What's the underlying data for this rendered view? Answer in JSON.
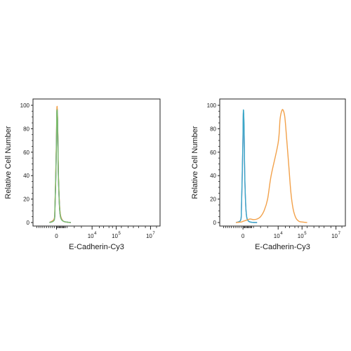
{
  "chart_data": [
    {
      "type": "line",
      "title": "",
      "xlabel": "E-Cadherin-Cy3",
      "ylabel": "Relative Cell Number",
      "x_scale": "logicle",
      "x_ticks": [
        {
          "value": 0,
          "label": "0",
          "exp": ""
        },
        {
          "value": 10000,
          "label": "10",
          "exp": "4"
        },
        {
          "value": 100000,
          "label": "10",
          "exp": "5"
        },
        {
          "value": 10000000,
          "label": "10",
          "exp": "7"
        }
      ],
      "y_ticks": [
        "0",
        "20",
        "40",
        "60",
        "80",
        "100"
      ],
      "ylim": [
        0,
        100
      ],
      "grid": false,
      "legend": "none",
      "series": [
        {
          "color": "#e05a2a",
          "peak_x": 3,
          "peak_y": 97,
          "points": [
            [
              -900,
              0
            ],
            [
              -300,
              3
            ],
            [
              -200,
              12
            ],
            [
              -100,
              38
            ],
            [
              0,
              72
            ],
            [
              50,
              88
            ],
            [
              100,
              95
            ],
            [
              150,
              97
            ],
            [
              200,
              96
            ],
            [
              300,
              88
            ],
            [
              400,
              70
            ],
            [
              500,
              45
            ],
            [
              700,
              25
            ],
            [
              900,
              12
            ],
            [
              1200,
              5
            ],
            [
              2000,
              1
            ],
            [
              4000,
              0
            ]
          ]
        },
        {
          "color": "#f2a14a",
          "peak_x": 4,
          "peak_y": 99,
          "points": [
            [
              -900,
              0
            ],
            [
              -300,
              3
            ],
            [
              -200,
              13
            ],
            [
              -100,
              40
            ],
            [
              0,
              74
            ],
            [
              50,
              90
            ],
            [
              100,
              97
            ],
            [
              150,
              99
            ],
            [
              200,
              98
            ],
            [
              300,
              90
            ],
            [
              400,
              72
            ],
            [
              500,
              47
            ],
            [
              700,
              26
            ],
            [
              900,
              13
            ],
            [
              1200,
              5
            ],
            [
              2000,
              1
            ],
            [
              4000,
              0
            ]
          ]
        },
        {
          "color": "#3aa8c8",
          "peak_x": 3,
          "peak_y": 96,
          "points": [
            [
              -900,
              0
            ],
            [
              -300,
              2
            ],
            [
              -200,
              11
            ],
            [
              -100,
              36
            ],
            [
              0,
              70
            ],
            [
              50,
              86
            ],
            [
              100,
              94
            ],
            [
              150,
              96
            ],
            [
              200,
              95
            ],
            [
              300,
              87
            ],
            [
              400,
              69
            ],
            [
              500,
              44
            ],
            [
              700,
              24
            ],
            [
              900,
              11
            ],
            [
              1200,
              4
            ],
            [
              2000,
              1
            ],
            [
              4000,
              0
            ]
          ]
        },
        {
          "color": "#8c6bb8",
          "peak_x": 3,
          "peak_y": 95,
          "points": [
            [
              -900,
              0
            ],
            [
              -300,
              2
            ],
            [
              -200,
              10
            ],
            [
              -100,
              35
            ],
            [
              0,
              69
            ],
            [
              50,
              85
            ],
            [
              100,
              93
            ],
            [
              150,
              95
            ],
            [
              200,
              94
            ],
            [
              300,
              86
            ],
            [
              400,
              68
            ],
            [
              500,
              43
            ],
            [
              700,
              23
            ],
            [
              900,
              10
            ],
            [
              1200,
              4
            ],
            [
              2000,
              1
            ],
            [
              4000,
              0
            ]
          ]
        },
        {
          "color": "#7bbf6a",
          "peak_x": 3,
          "peak_y": 96,
          "points": [
            [
              -900,
              0
            ],
            [
              -300,
              2
            ],
            [
              -200,
              11
            ],
            [
              -100,
              36
            ],
            [
              0,
              70
            ],
            [
              50,
              86
            ],
            [
              100,
              94
            ],
            [
              150,
              96
            ],
            [
              200,
              95
            ],
            [
              300,
              87
            ],
            [
              400,
              69
            ],
            [
              500,
              44
            ],
            [
              700,
              24
            ],
            [
              900,
              11
            ],
            [
              1200,
              4
            ],
            [
              2000,
              1
            ],
            [
              4000,
              0
            ]
          ]
        }
      ]
    },
    {
      "type": "line",
      "title": "",
      "xlabel": "E-Cadherin-Cy3",
      "ylabel": "Relative Cell Number",
      "x_scale": "logicle",
      "x_ticks": [
        {
          "value": 0,
          "label": "0",
          "exp": ""
        },
        {
          "value": 10000,
          "label": "10",
          "exp": "4"
        },
        {
          "value": 100000,
          "label": "10",
          "exp": "5"
        },
        {
          "value": 10000000,
          "label": "10",
          "exp": "7"
        }
      ],
      "y_ticks": [
        "0",
        "20",
        "40",
        "60",
        "80",
        "100"
      ],
      "ylim": [
        0,
        100
      ],
      "grid": false,
      "legend": "none",
      "series": [
        {
          "color": "#8c6bb8",
          "points": [
            [
              -900,
              0
            ],
            [
              -300,
              2
            ],
            [
              -200,
              11
            ],
            [
              -100,
              38
            ],
            [
              0,
              72
            ],
            [
              50,
              86
            ],
            [
              100,
              93
            ],
            [
              150,
              94
            ],
            [
              200,
              92
            ],
            [
              300,
              82
            ],
            [
              400,
              62
            ],
            [
              500,
              40
            ],
            [
              700,
              20
            ],
            [
              900,
              9
            ],
            [
              1200,
              3
            ],
            [
              2000,
              0.5
            ],
            [
              4000,
              0
            ]
          ]
        },
        {
          "color": "#3aa8c8",
          "points": [
            [
              -900,
              0
            ],
            [
              -300,
              2
            ],
            [
              -200,
              12
            ],
            [
              -100,
              40
            ],
            [
              0,
              74
            ],
            [
              50,
              88
            ],
            [
              100,
              95
            ],
            [
              150,
              96
            ],
            [
              200,
              94
            ],
            [
              300,
              84
            ],
            [
              400,
              64
            ],
            [
              500,
              41
            ],
            [
              700,
              21
            ],
            [
              900,
              9
            ],
            [
              1200,
              3
            ],
            [
              2000,
              0.5
            ],
            [
              4000,
              0
            ]
          ]
        },
        {
          "color": "#f2a14a",
          "points": [
            [
              -900,
              0
            ],
            [
              -200,
              0.5
            ],
            [
              0,
              1
            ],
            [
              1000,
              2
            ],
            [
              2000,
              3
            ],
            [
              3000,
              2.5
            ],
            [
              4000,
              3
            ],
            [
              5000,
              5
            ],
            [
              6000,
              10
            ],
            [
              7000,
              20
            ],
            [
              8000,
              40
            ],
            [
              10000,
              68
            ],
            [
              12000,
              88
            ],
            [
              14000,
              95
            ],
            [
              16000,
              96
            ],
            [
              19000,
              90
            ],
            [
              23000,
              70
            ],
            [
              28000,
              48
            ],
            [
              34000,
              26
            ],
            [
              42000,
              12
            ],
            [
              55000,
              4
            ],
            [
              75000,
              1
            ],
            [
              100000,
              0.5
            ],
            [
              200000,
              0
            ]
          ]
        }
      ]
    }
  ]
}
